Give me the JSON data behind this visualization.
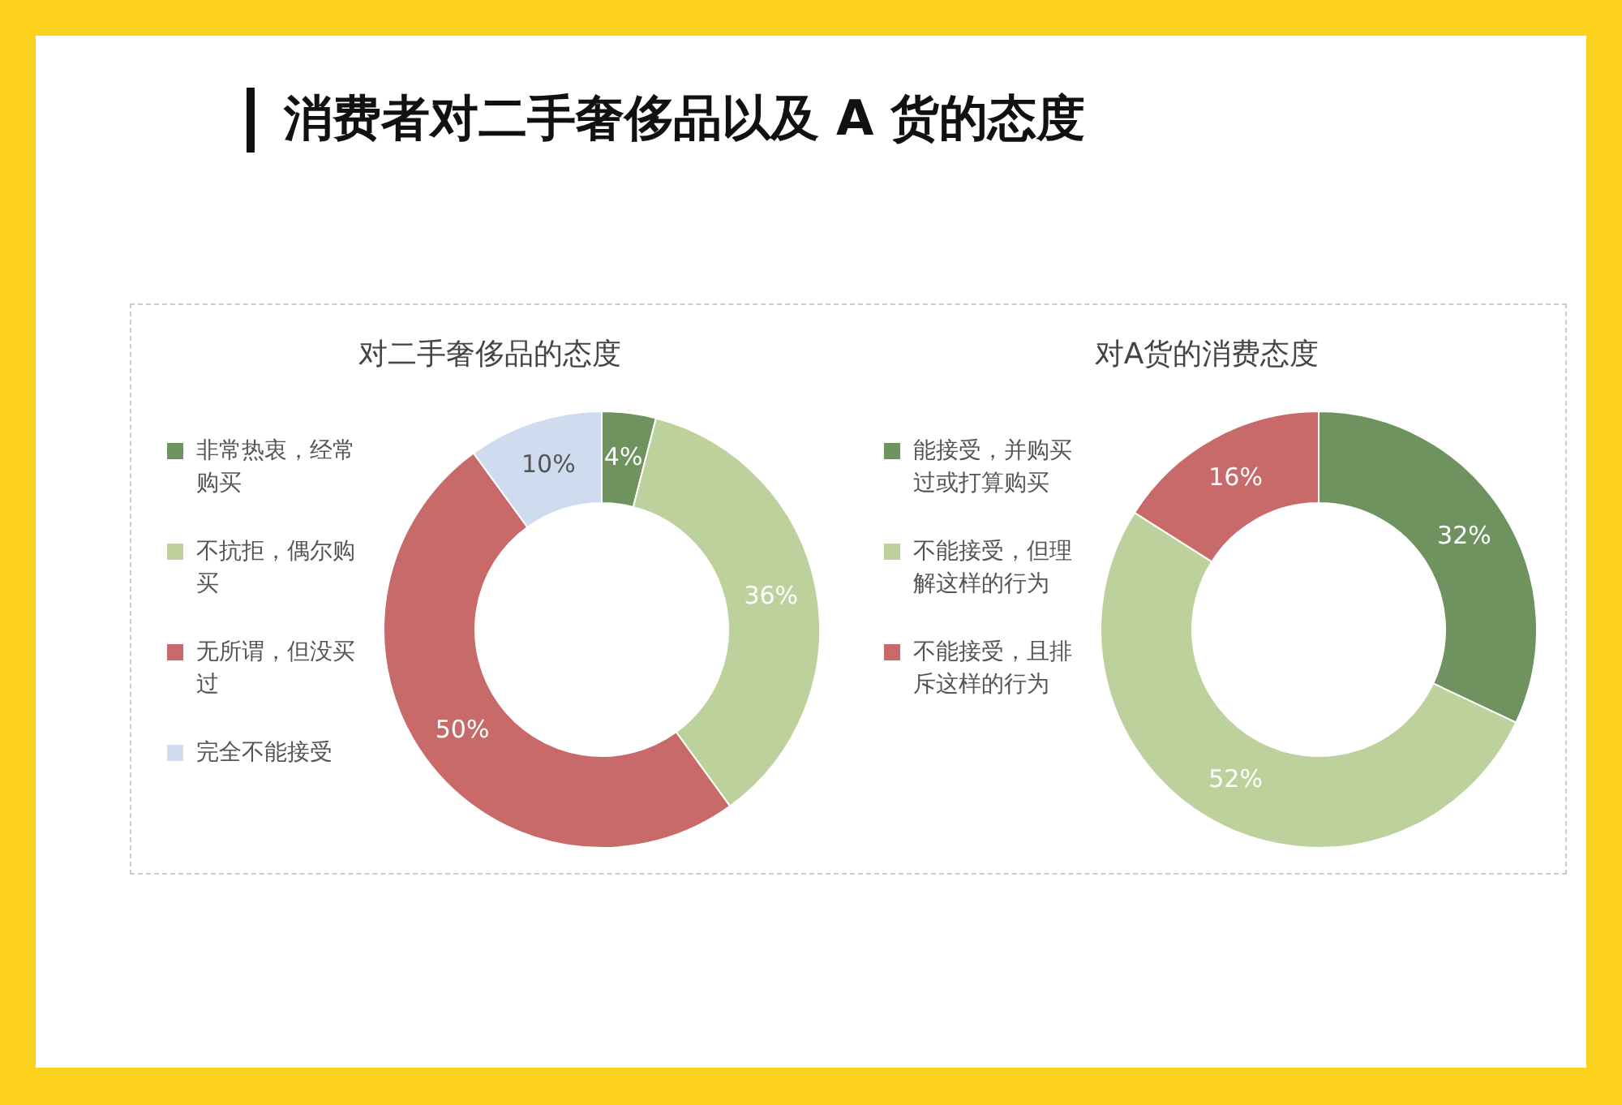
{
  "chart_data": [
    {
      "type": "other",
      "title": "消费者对二手奢侈品以及 A 货的态度"
    },
    {
      "type": "donut",
      "title": "对二手奢侈品的态度",
      "categories": [
        "非常热衷，经常购买",
        "不抗拒，偶尔购买",
        "无所谓，但没买过",
        "完全不能接受"
      ],
      "values": [
        4,
        36,
        50,
        10
      ],
      "colors": [
        "#6f935f",
        "#bdd19d",
        "#c96a6a",
        "#cfdcef"
      ],
      "value_labels": [
        "4%",
        "36%",
        "50%",
        "10%"
      ],
      "legend": "left"
    },
    {
      "type": "donut",
      "title": "对A货的消费态度",
      "categories": [
        "能接受，并购买过或打算购买",
        "不能接受，但理解这样的行为",
        "不能接受，且排斥这样的行为"
      ],
      "values": [
        32,
        52,
        16
      ],
      "colors": [
        "#6f935f",
        "#bdd19d",
        "#c96a6a"
      ],
      "value_labels": [
        "32%",
        "52%",
        "16%"
      ],
      "legend": "left"
    }
  ]
}
